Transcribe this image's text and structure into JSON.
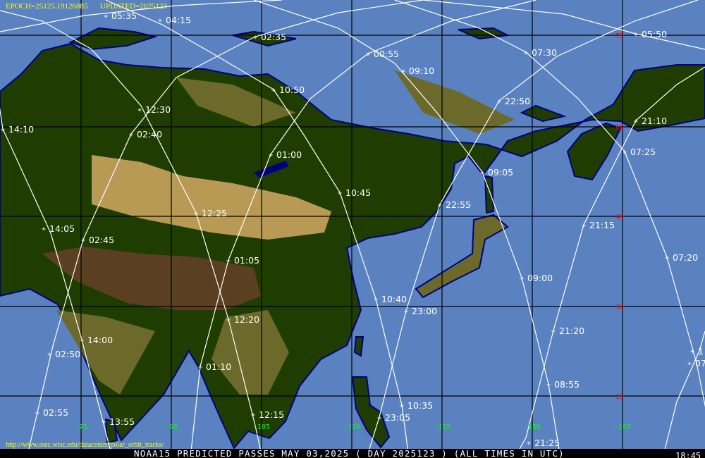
{
  "header": {
    "epoch": "EPOCH=25125.19126885",
    "updated": "UPDATED=2025123"
  },
  "url": "http://www.ssec.wisc.edu/datacenter/polar_orbit_tracks/",
  "footer": {
    "title": "NOAA15 PREDICTED PASSES MAY_03,2025 ( DAY 2025123 ) (ALL TIMES IN UTC)",
    "partial_time": "18:45"
  },
  "map": {
    "satellite": "NOAA15",
    "colors": {
      "ocean": "#5b82c0",
      "coast": "#00007f",
      "lowland": "#1f3d00",
      "upland": "#6b6a2a",
      "highland": "#b89a55",
      "plateau": "#5a4020",
      "grid": "#000000",
      "track": "#ffffff",
      "lat_label": "#ff0000",
      "lon_label": "#00ff00",
      "header_text": "#ffff00"
    },
    "latitude_labels": [
      "75",
      "60",
      "45",
      "30",
      "15"
    ],
    "longitude_labels": [
      "-75",
      "-90",
      "-105",
      "-120",
      "-135",
      "-150",
      "-165"
    ],
    "pass_times": [
      "05:35",
      "04:15",
      "02:35",
      "00:55",
      "07:30",
      "05:50",
      "09:10",
      "10:50",
      "12:30",
      "22:50",
      "14:10",
      "02:40",
      "21:10",
      "01:00",
      "07:25",
      "09:05",
      "10:45",
      "12:25",
      "22:55",
      "14:05",
      "02:45",
      "21:15",
      "01:05",
      "07:20",
      "09:00",
      "10:40",
      "23:00",
      "12:20",
      "21:20",
      "14:00",
      "02:50",
      "01:10",
      "08:55",
      "10:35",
      "23:05",
      "12:15",
      "21:25",
      "13:55",
      "02:55",
      "1",
      "07"
    ]
  }
}
